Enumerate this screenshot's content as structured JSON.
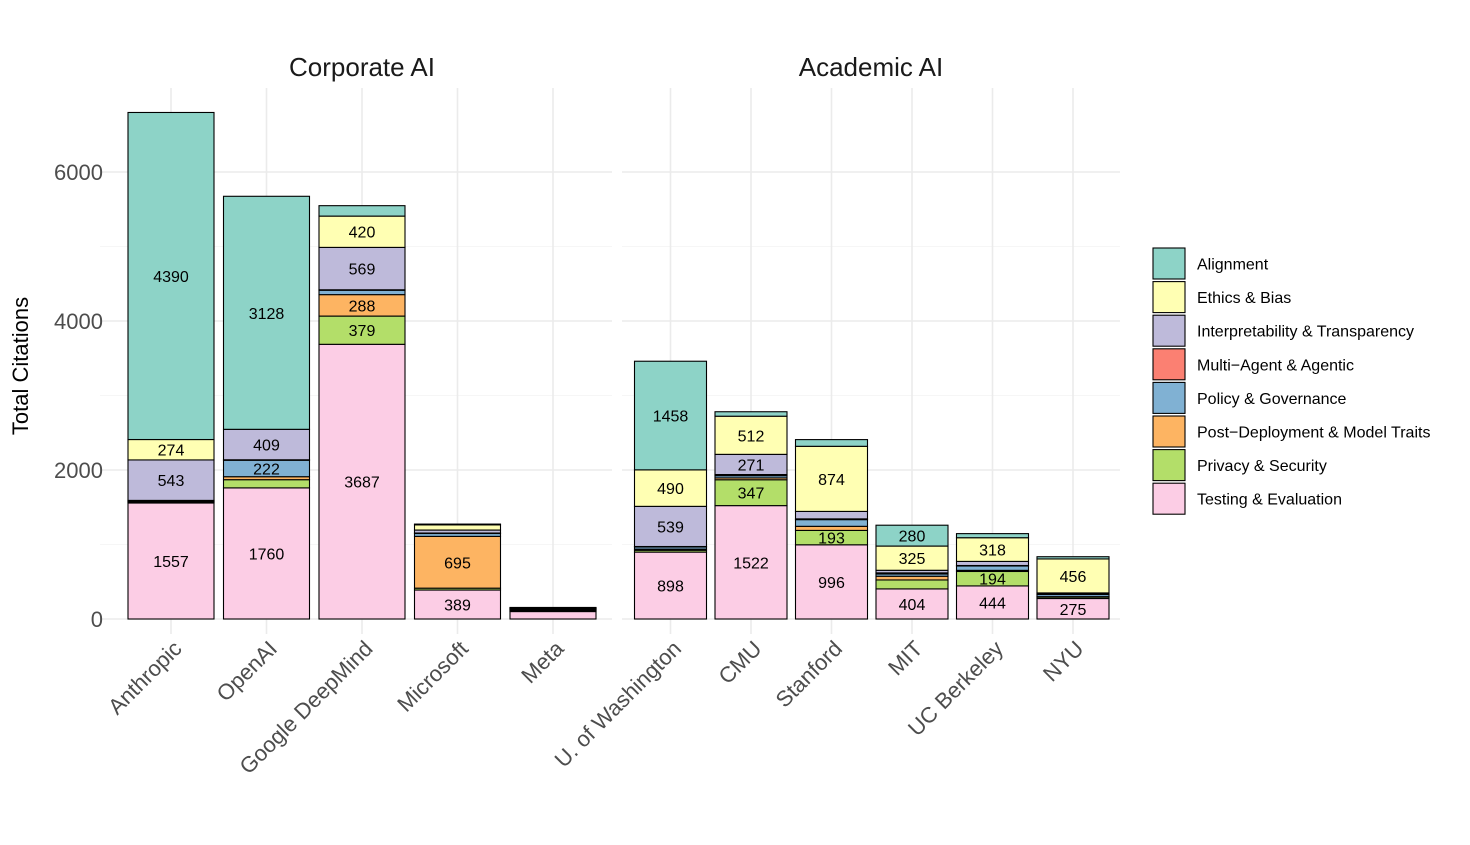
{
  "chart_data": {
    "type": "bar",
    "stacked": true,
    "y_axis_label": "Total Citations",
    "y_ticks": [
      0,
      2000,
      4000,
      6000
    ],
    "ylim": [
      0,
      7000
    ],
    "legend_position": "right",
    "categories_order": [
      "Testing & Evaluation",
      "Privacy & Security",
      "Post−Deployment & Model Traits",
      "Policy & Governance",
      "Multi−Agent & Agentic",
      "Interpretability & Transparency",
      "Ethics & Bias",
      "Alignment"
    ],
    "legend": [
      {
        "label": "Alignment",
        "color": "#8DD3C7"
      },
      {
        "label": "Ethics & Bias",
        "color": "#FFFFB3"
      },
      {
        "label": "Interpretability & Transparency",
        "color": "#BEBADA"
      },
      {
        "label": "Multi−Agent & Agentic",
        "color": "#FB8072"
      },
      {
        "label": "Policy & Governance",
        "color": "#80B1D3"
      },
      {
        "label": "Post−Deployment & Model Traits",
        "color": "#FDB462"
      },
      {
        "label": "Privacy & Security",
        "color": "#B3DE69"
      },
      {
        "label": "Testing & Evaluation",
        "color": "#FCCDE5"
      }
    ],
    "facets": [
      {
        "title": "Corporate AI",
        "bars": [
          {
            "name": "Anthropic",
            "segments": [
              {
                "category": "Testing & Evaluation",
                "value": 1557,
                "label": "1557"
              },
              {
                "category": "Privacy & Security",
                "value": 10
              },
              {
                "category": "Post−Deployment & Model Traits",
                "value": 10
              },
              {
                "category": "Policy & Governance",
                "value": 10
              },
              {
                "category": "Multi−Agent & Agentic",
                "value": 5
              },
              {
                "category": "Interpretability & Transparency",
                "value": 543,
                "label": "543"
              },
              {
                "category": "Ethics & Bias",
                "value": 274,
                "label": "274"
              },
              {
                "category": "Alignment",
                "value": 4390,
                "label": "4390"
              }
            ]
          },
          {
            "name": "OpenAI",
            "segments": [
              {
                "category": "Testing & Evaluation",
                "value": 1760,
                "label": "1760"
              },
              {
                "category": "Privacy & Security",
                "value": 110
              },
              {
                "category": "Post−Deployment & Model Traits",
                "value": 40
              },
              {
                "category": "Policy & Governance",
                "value": 222,
                "label": "222"
              },
              {
                "category": "Multi−Agent & Agentic",
                "value": 5
              },
              {
                "category": "Interpretability & Transparency",
                "value": 409,
                "label": "409"
              },
              {
                "category": "Ethics & Bias",
                "value": 0
              },
              {
                "category": "Alignment",
                "value": 3128,
                "label": "3128"
              }
            ]
          },
          {
            "name": "Google DeepMind",
            "segments": [
              {
                "category": "Testing & Evaluation",
                "value": 3687,
                "label": "3687"
              },
              {
                "category": "Privacy & Security",
                "value": 379,
                "label": "379"
              },
              {
                "category": "Post−Deployment & Model Traits",
                "value": 288,
                "label": "288"
              },
              {
                "category": "Policy & Governance",
                "value": 60
              },
              {
                "category": "Multi−Agent & Agentic",
                "value": 5
              },
              {
                "category": "Interpretability & Transparency",
                "value": 569,
                "label": "569"
              },
              {
                "category": "Ethics & Bias",
                "value": 420,
                "label": "420"
              },
              {
                "category": "Alignment",
                "value": 140
              }
            ]
          },
          {
            "name": "Microsoft",
            "segments": [
              {
                "category": "Testing & Evaluation",
                "value": 389,
                "label": "389"
              },
              {
                "category": "Privacy & Security",
                "value": 25
              },
              {
                "category": "Post−Deployment & Model Traits",
                "value": 695,
                "label": "695"
              },
              {
                "category": "Policy & Governance",
                "value": 40
              },
              {
                "category": "Multi−Agent & Agentic",
                "value": 5
              },
              {
                "category": "Interpretability & Transparency",
                "value": 40
              },
              {
                "category": "Ethics & Bias",
                "value": 70
              },
              {
                "category": "Alignment",
                "value": 10
              }
            ]
          },
          {
            "name": "Meta",
            "segments": [
              {
                "category": "Testing & Evaluation",
                "value": 100
              },
              {
                "category": "Privacy & Security",
                "value": 10
              },
              {
                "category": "Post−Deployment & Model Traits",
                "value": 10
              },
              {
                "category": "Policy & Governance",
                "value": 10
              },
              {
                "category": "Multi−Agent & Agentic",
                "value": 5
              },
              {
                "category": "Interpretability & Transparency",
                "value": 10
              },
              {
                "category": "Ethics & Bias",
                "value": 5
              },
              {
                "category": "Alignment",
                "value": 5
              }
            ]
          }
        ]
      },
      {
        "title": "Academic AI",
        "bars": [
          {
            "name": "U. of Washington",
            "segments": [
              {
                "category": "Testing & Evaluation",
                "value": 898,
                "label": "898"
              },
              {
                "category": "Privacy & Security",
                "value": 25
              },
              {
                "category": "Post−Deployment & Model Traits",
                "value": 15
              },
              {
                "category": "Policy & Governance",
                "value": 30
              },
              {
                "category": "Multi−Agent & Agentic",
                "value": 5
              },
              {
                "category": "Interpretability & Transparency",
                "value": 539,
                "label": "539"
              },
              {
                "category": "Ethics & Bias",
                "value": 490,
                "label": "490"
              },
              {
                "category": "Alignment",
                "value": 1458,
                "label": "1458"
              }
            ]
          },
          {
            "name": "CMU",
            "segments": [
              {
                "category": "Testing & Evaluation",
                "value": 1522,
                "label": "1522"
              },
              {
                "category": "Privacy & Security",
                "value": 347,
                "label": "347"
              },
              {
                "category": "Post−Deployment & Model Traits",
                "value": 25
              },
              {
                "category": "Policy & Governance",
                "value": 30
              },
              {
                "category": "Multi−Agent & Agentic",
                "value": 15
              },
              {
                "category": "Interpretability & Transparency",
                "value": 271,
                "label": "271"
              },
              {
                "category": "Ethics & Bias",
                "value": 512,
                "label": "512"
              },
              {
                "category": "Alignment",
                "value": 60
              }
            ]
          },
          {
            "name": "Stanford",
            "segments": [
              {
                "category": "Testing & Evaluation",
                "value": 996,
                "label": "996"
              },
              {
                "category": "Privacy & Security",
                "value": 193,
                "label": "193"
              },
              {
                "category": "Post−Deployment & Model Traits",
                "value": 55
              },
              {
                "category": "Policy & Governance",
                "value": 90
              },
              {
                "category": "Multi−Agent & Agentic",
                "value": 10
              },
              {
                "category": "Interpretability & Transparency",
                "value": 100
              },
              {
                "category": "Ethics & Bias",
                "value": 874,
                "label": "874"
              },
              {
                "category": "Alignment",
                "value": 90
              }
            ]
          },
          {
            "name": "MIT",
            "segments": [
              {
                "category": "Testing & Evaluation",
                "value": 404,
                "label": "404"
              },
              {
                "category": "Privacy & Security",
                "value": 120
              },
              {
                "category": "Post−Deployment & Model Traits",
                "value": 50
              },
              {
                "category": "Policy & Governance",
                "value": 30
              },
              {
                "category": "Multi−Agent & Agentic",
                "value": 15
              },
              {
                "category": "Interpretability & Transparency",
                "value": 35
              },
              {
                "category": "Ethics & Bias",
                "value": 325,
                "label": "325"
              },
              {
                "category": "Alignment",
                "value": 280,
                "label": "280"
              }
            ]
          },
          {
            "name": "UC Berkeley",
            "segments": [
              {
                "category": "Testing & Evaluation",
                "value": 444,
                "label": "444"
              },
              {
                "category": "Privacy & Security",
                "value": 194,
                "label": "194"
              },
              {
                "category": "Post−Deployment & Model Traits",
                "value": 15
              },
              {
                "category": "Policy & Governance",
                "value": 60
              },
              {
                "category": "Multi−Agent & Agentic",
                "value": 5
              },
              {
                "category": "Interpretability & Transparency",
                "value": 55
              },
              {
                "category": "Ethics & Bias",
                "value": 318,
                "label": "318"
              },
              {
                "category": "Alignment",
                "value": 55
              }
            ]
          },
          {
            "name": "NYU",
            "segments": [
              {
                "category": "Testing & Evaluation",
                "value": 275,
                "label": "275"
              },
              {
                "category": "Privacy & Security",
                "value": 20
              },
              {
                "category": "Post−Deployment & Model Traits",
                "value": 5
              },
              {
                "category": "Policy & Governance",
                "value": 30
              },
              {
                "category": "Multi−Agent & Agentic",
                "value": 5
              },
              {
                "category": "Interpretability & Transparency",
                "value": 15
              },
              {
                "category": "Ethics & Bias",
                "value": 456,
                "label": "456"
              },
              {
                "category": "Alignment",
                "value": 30
              }
            ]
          }
        ]
      }
    ]
  }
}
